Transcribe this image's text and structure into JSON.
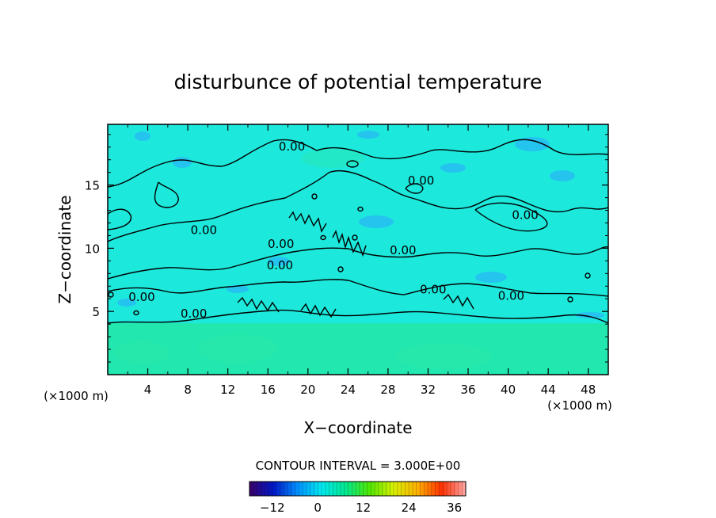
{
  "chart_data": {
    "type": "heatmap",
    "title": "disturbunce of potential temperature",
    "xlabel": "X−coordinate",
    "ylabel": "Z−coordinate",
    "x_unit": "(×1000 m)",
    "y_unit": "(×1000 m)",
    "xlim": [
      0,
      50
    ],
    "ylim": [
      0,
      19.8
    ],
    "xticks": [
      4,
      8,
      12,
      16,
      20,
      24,
      28,
      32,
      36,
      40,
      44,
      48
    ],
    "yticks": [
      5,
      10,
      15
    ],
    "contour_interval_label": "CONTOUR INTERVAL = 3.000E+00",
    "contour_value_label": "0.00",
    "colorbar": {
      "range": [
        -18,
        39
      ],
      "ticks": [
        -12,
        0,
        12,
        24,
        36
      ],
      "colors": [
        "#3a006a",
        "#0018c8",
        "#0090ff",
        "#00e8f0",
        "#00e890",
        "#50e800",
        "#d8f000",
        "#ffb000",
        "#ff3000",
        "#ffa8a8"
      ]
    },
    "field_colors": {
      "upper": "#1ce8dc",
      "lower": "#22e8b0",
      "patch": "#27b8f5"
    },
    "contours": [
      {
        "level": 0,
        "label_at": [
          [
            18.4,
            18.1
          ],
          [
            31.3,
            15.4
          ],
          [
            41.7,
            12.7
          ],
          [
            9.6,
            11.5
          ],
          [
            17.3,
            10.4
          ],
          [
            29.5,
            9.9
          ],
          [
            17.2,
            8.7
          ],
          [
            32.5,
            6.8
          ],
          [
            3.4,
            6.2
          ],
          [
            40.3,
            6.3
          ],
          [
            8.6,
            4.9
          ]
        ]
      }
    ]
  }
}
